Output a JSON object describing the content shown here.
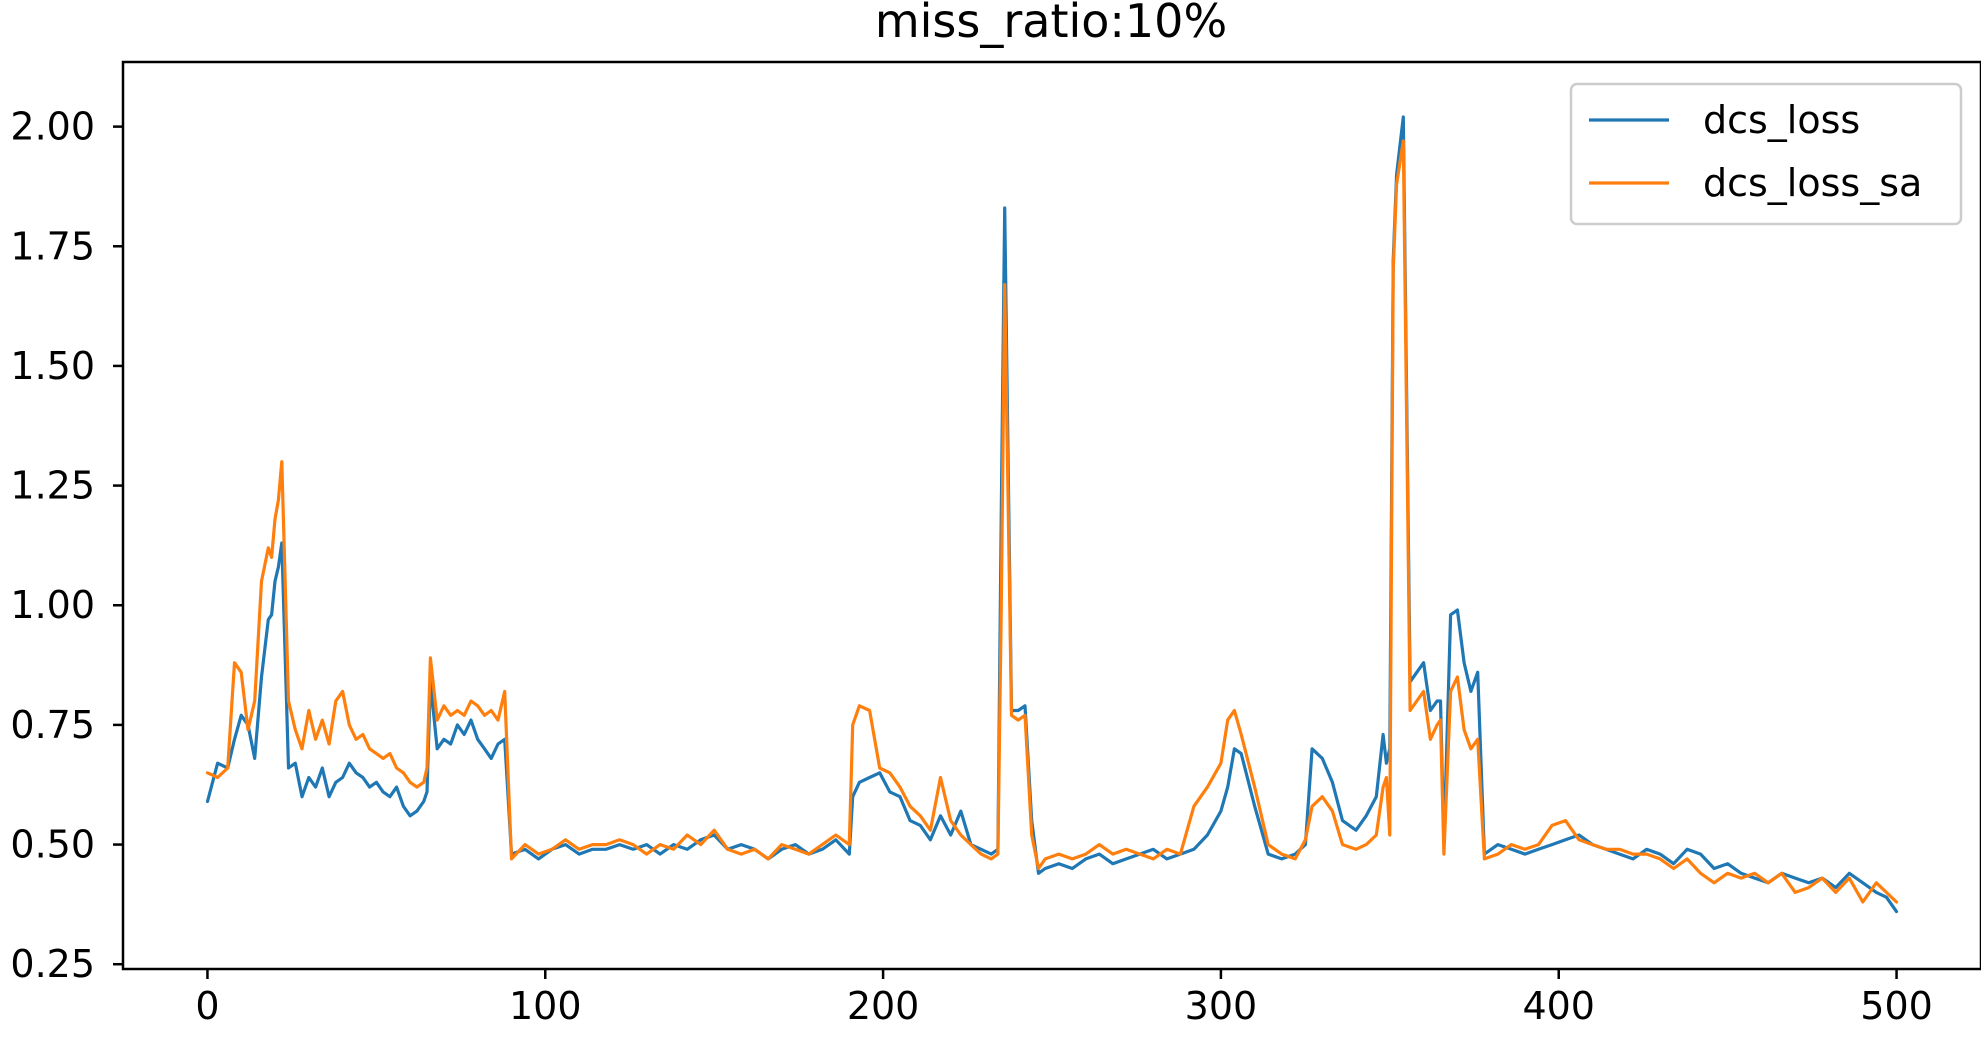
{
  "chart_data": {
    "type": "line",
    "title": "miss_ratio:10%",
    "xlabel": "",
    "ylabel": "",
    "xlim": [
      -25,
      525
    ],
    "ylim": [
      0.24,
      2.135
    ],
    "x_ticks": [
      0,
      100,
      200,
      300,
      400,
      500
    ],
    "x_tick_labels": [
      "0",
      "100",
      "200",
      "300",
      "400",
      "500"
    ],
    "y_ticks": [
      0.25,
      0.5,
      0.75,
      1.0,
      1.25,
      1.5,
      1.75,
      2.0
    ],
    "y_tick_labels": [
      "0.25",
      "0.50",
      "0.75",
      "1.00",
      "1.25",
      "1.50",
      "1.75",
      "2.00"
    ],
    "grid": false,
    "legend_position": "top-right",
    "series": [
      {
        "name": "dcs_loss",
        "color": "#1f77b4",
        "x": [
          0,
          3,
          6,
          8,
          10,
          12,
          14,
          16,
          18,
          19,
          20,
          21,
          22,
          24,
          26,
          28,
          30,
          32,
          34,
          36,
          38,
          40,
          42,
          44,
          46,
          48,
          50,
          52,
          54,
          56,
          58,
          60,
          62,
          64,
          65,
          66,
          68,
          70,
          72,
          74,
          76,
          78,
          80,
          82,
          84,
          86,
          88,
          90,
          94,
          98,
          102,
          106,
          110,
          114,
          118,
          122,
          126,
          130,
          134,
          138,
          142,
          146,
          150,
          154,
          158,
          162,
          166,
          170,
          174,
          178,
          182,
          186,
          190,
          191,
          193,
          196,
          199,
          202,
          205,
          208,
          211,
          214,
          217,
          220,
          223,
          226,
          229,
          232,
          234,
          235,
          236,
          238,
          240,
          242,
          244,
          246,
          248,
          252,
          256,
          260,
          264,
          268,
          272,
          276,
          280,
          284,
          288,
          292,
          296,
          300,
          302,
          304,
          306,
          310,
          314,
          318,
          322,
          325,
          327,
          330,
          333,
          336,
          340,
          343,
          346,
          348,
          349,
          350,
          351,
          352,
          354,
          356,
          358,
          360,
          362,
          364,
          365,
          366,
          368,
          370,
          372,
          374,
          376,
          378,
          382,
          386,
          390,
          394,
          398,
          402,
          406,
          410,
          414,
          418,
          422,
          426,
          430,
          434,
          438,
          442,
          446,
          450,
          454,
          458,
          462,
          466,
          470,
          474,
          478,
          482,
          486,
          490,
          494,
          497,
          500
        ],
        "values": [
          0.59,
          0.67,
          0.66,
          0.72,
          0.77,
          0.75,
          0.68,
          0.85,
          0.97,
          0.98,
          1.05,
          1.08,
          1.13,
          0.66,
          0.67,
          0.6,
          0.64,
          0.62,
          0.66,
          0.6,
          0.63,
          0.64,
          0.67,
          0.65,
          0.64,
          0.62,
          0.63,
          0.61,
          0.6,
          0.62,
          0.58,
          0.56,
          0.57,
          0.59,
          0.61,
          0.84,
          0.7,
          0.72,
          0.71,
          0.75,
          0.73,
          0.76,
          0.72,
          0.7,
          0.68,
          0.71,
          0.72,
          0.48,
          0.49,
          0.47,
          0.49,
          0.5,
          0.48,
          0.49,
          0.49,
          0.5,
          0.49,
          0.5,
          0.48,
          0.5,
          0.49,
          0.51,
          0.52,
          0.49,
          0.5,
          0.49,
          0.47,
          0.49,
          0.5,
          0.48,
          0.49,
          0.51,
          0.48,
          0.6,
          0.63,
          0.64,
          0.65,
          0.61,
          0.6,
          0.55,
          0.54,
          0.51,
          0.56,
          0.52,
          0.57,
          0.5,
          0.49,
          0.48,
          0.49,
          1.2,
          1.83,
          0.78,
          0.78,
          0.79,
          0.55,
          0.44,
          0.45,
          0.46,
          0.45,
          0.47,
          0.48,
          0.46,
          0.47,
          0.48,
          0.49,
          0.47,
          0.48,
          0.49,
          0.52,
          0.57,
          0.62,
          0.7,
          0.69,
          0.58,
          0.48,
          0.47,
          0.48,
          0.5,
          0.7,
          0.68,
          0.63,
          0.55,
          0.53,
          0.56,
          0.6,
          0.73,
          0.67,
          0.7,
          1.72,
          1.9,
          2.02,
          0.84,
          0.86,
          0.88,
          0.78,
          0.8,
          0.8,
          0.5,
          0.98,
          0.99,
          0.88,
          0.82,
          0.86,
          0.48,
          0.5,
          0.49,
          0.48,
          0.49,
          0.5,
          0.51,
          0.52,
          0.5,
          0.49,
          0.48,
          0.47,
          0.49,
          0.48,
          0.46,
          0.49,
          0.48,
          0.45,
          0.46,
          0.44,
          0.43,
          0.42,
          0.44,
          0.43,
          0.42,
          0.43,
          0.41,
          0.44,
          0.42,
          0.4,
          0.39,
          0.36
        ]
      },
      {
        "name": "dcs_loss_sa",
        "color": "#ff7f0e",
        "x": [
          0,
          3,
          6,
          8,
          10,
          12,
          14,
          16,
          18,
          19,
          20,
          21,
          22,
          24,
          26,
          28,
          30,
          32,
          34,
          36,
          38,
          40,
          42,
          44,
          46,
          48,
          50,
          52,
          54,
          56,
          58,
          60,
          62,
          64,
          65,
          66,
          68,
          70,
          72,
          74,
          76,
          78,
          80,
          82,
          84,
          86,
          88,
          90,
          94,
          98,
          102,
          106,
          110,
          114,
          118,
          122,
          126,
          130,
          134,
          138,
          142,
          146,
          150,
          154,
          158,
          162,
          166,
          170,
          174,
          178,
          182,
          186,
          190,
          191,
          193,
          196,
          199,
          202,
          205,
          208,
          211,
          214,
          217,
          220,
          223,
          226,
          229,
          232,
          234,
          235,
          236,
          238,
          240,
          242,
          244,
          246,
          248,
          252,
          256,
          260,
          264,
          268,
          272,
          276,
          280,
          284,
          288,
          292,
          296,
          300,
          302,
          304,
          306,
          310,
          314,
          318,
          322,
          325,
          327,
          330,
          333,
          336,
          340,
          343,
          346,
          348,
          349,
          350,
          351,
          352,
          354,
          356,
          358,
          360,
          362,
          364,
          365,
          366,
          368,
          370,
          372,
          374,
          376,
          378,
          382,
          386,
          390,
          394,
          398,
          402,
          406,
          410,
          414,
          418,
          422,
          426,
          430,
          434,
          438,
          442,
          446,
          450,
          454,
          458,
          462,
          466,
          470,
          474,
          478,
          482,
          486,
          490,
          494,
          497,
          500
        ],
        "values": [
          0.65,
          0.64,
          0.66,
          0.88,
          0.86,
          0.74,
          0.8,
          1.05,
          1.12,
          1.1,
          1.18,
          1.22,
          1.3,
          0.8,
          0.74,
          0.7,
          0.78,
          0.72,
          0.76,
          0.71,
          0.8,
          0.82,
          0.75,
          0.72,
          0.73,
          0.7,
          0.69,
          0.68,
          0.69,
          0.66,
          0.65,
          0.63,
          0.62,
          0.63,
          0.66,
          0.89,
          0.76,
          0.79,
          0.77,
          0.78,
          0.77,
          0.8,
          0.79,
          0.77,
          0.78,
          0.76,
          0.82,
          0.47,
          0.5,
          0.48,
          0.49,
          0.51,
          0.49,
          0.5,
          0.5,
          0.51,
          0.5,
          0.48,
          0.5,
          0.49,
          0.52,
          0.5,
          0.53,
          0.49,
          0.48,
          0.49,
          0.47,
          0.5,
          0.49,
          0.48,
          0.5,
          0.52,
          0.5,
          0.75,
          0.79,
          0.78,
          0.66,
          0.65,
          0.62,
          0.58,
          0.56,
          0.53,
          0.64,
          0.55,
          0.52,
          0.5,
          0.48,
          0.47,
          0.48,
          1.0,
          1.67,
          0.77,
          0.76,
          0.77,
          0.52,
          0.45,
          0.47,
          0.48,
          0.47,
          0.48,
          0.5,
          0.48,
          0.49,
          0.48,
          0.47,
          0.49,
          0.48,
          0.58,
          0.62,
          0.67,
          0.76,
          0.78,
          0.73,
          0.62,
          0.5,
          0.48,
          0.47,
          0.51,
          0.58,
          0.6,
          0.57,
          0.5,
          0.49,
          0.5,
          0.52,
          0.62,
          0.64,
          0.52,
          1.7,
          1.88,
          1.97,
          0.78,
          0.8,
          0.82,
          0.72,
          0.75,
          0.76,
          0.48,
          0.82,
          0.85,
          0.74,
          0.7,
          0.72,
          0.47,
          0.48,
          0.5,
          0.49,
          0.5,
          0.54,
          0.55,
          0.51,
          0.5,
          0.49,
          0.49,
          0.48,
          0.48,
          0.47,
          0.45,
          0.47,
          0.44,
          0.42,
          0.44,
          0.43,
          0.44,
          0.42,
          0.44,
          0.4,
          0.41,
          0.43,
          0.4,
          0.43,
          0.38,
          0.42,
          0.4,
          0.38
        ]
      }
    ]
  }
}
